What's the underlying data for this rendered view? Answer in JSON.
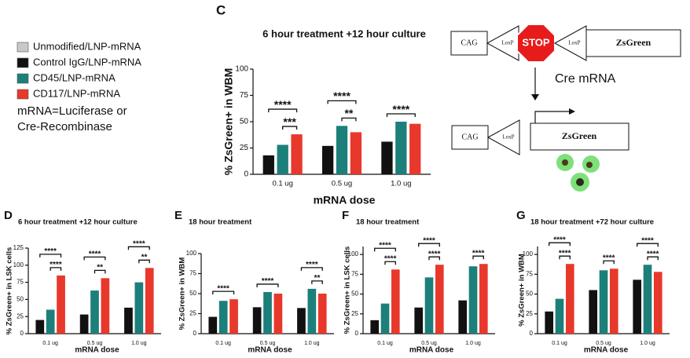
{
  "legend": [
    {
      "name": "Unmodified/LNP-mRNA",
      "color": "#c8c8c8"
    },
    {
      "name": "Control IgG/LNP-mRNA",
      "color": "#111111"
    },
    {
      "name": "CD45/LNP-mRNA",
      "color": "#1c7f7a"
    },
    {
      "name": "CD117/LNP-mRNA",
      "color": "#e8382c"
    }
  ],
  "note": [
    "mRNA=Luciferase or",
    "Cre-Recombinase"
  ],
  "diagram": {
    "top": [
      "CAG",
      "LoxP",
      "STOP",
      "LoxP",
      "ZsGreen"
    ],
    "arrow": "Cre mRNA",
    "bottom": [
      "CAG",
      "LoxP",
      "ZsGreen"
    ]
  },
  "chart_data": [
    {
      "type": "bar",
      "panel": "C",
      "title": "6 hour treatment +12 hour culture",
      "ylabel": "% ZsGreen+ in WBM",
      "xlabel": "mRNA dose",
      "categories": [
        "0.1 ug",
        "0.5 ug",
        "1.0 ug"
      ],
      "ylim": [
        0,
        100
      ],
      "yticks": [
        0,
        25,
        50,
        75,
        100
      ],
      "series": [
        {
          "color": "#111111",
          "values": [
            18,
            27,
            31
          ]
        },
        {
          "color": "#1c7f7a",
          "values": [
            28,
            46,
            50
          ]
        },
        {
          "color": "#e8382c",
          "values": [
            38,
            40,
            48
          ]
        }
      ],
      "annotations": [
        {
          "label": "****",
          "category": 0,
          "from": 0,
          "to": 2
        },
        {
          "label": "***",
          "category": 0,
          "from": 1,
          "to": 2
        },
        {
          "label": "****",
          "category": 1,
          "from": 0,
          "to": 2
        },
        {
          "label": "**",
          "category": 1,
          "from": 1,
          "to": 2
        },
        {
          "label": "****",
          "category": 2,
          "from": 0,
          "to": 2
        }
      ]
    },
    {
      "type": "bar",
      "panel": "D",
      "title": "6 hour treatment +12 hour culture",
      "ylabel": "% ZsGreen+ in LSK cells",
      "xlabel": "mRNA dose",
      "categories": [
        "0.1 ug",
        "0.5 ug",
        "1.0 ug"
      ],
      "ylim": [
        0,
        125
      ],
      "yticks": [
        0,
        25,
        50,
        75,
        100,
        125
      ],
      "series": [
        {
          "color": "#111111",
          "values": [
            20,
            28,
            38
          ]
        },
        {
          "color": "#1c7f7a",
          "values": [
            35,
            63,
            75
          ]
        },
        {
          "color": "#e8382c",
          "values": [
            85,
            81,
            96
          ]
        }
      ],
      "annotations": [
        {
          "label": "****",
          "category": 0,
          "from": 0,
          "to": 2
        },
        {
          "label": "****",
          "category": 0,
          "from": 1,
          "to": 2
        },
        {
          "label": "****",
          "category": 1,
          "from": 0,
          "to": 2
        },
        {
          "label": "**",
          "category": 1,
          "from": 1,
          "to": 2
        },
        {
          "label": "****",
          "category": 2,
          "from": 0,
          "to": 2
        },
        {
          "label": "**",
          "category": 2,
          "from": 1,
          "to": 2
        }
      ]
    },
    {
      "type": "bar",
      "panel": "E",
      "title": "18 hour treatment",
      "ylabel": "% ZsGreen+ in WBM",
      "xlabel": "mRNA dose",
      "categories": [
        "0.1 ug",
        "0.5 ug",
        "1.0 ug"
      ],
      "ylim": [
        0,
        100
      ],
      "yticks": [
        0,
        25,
        50,
        75,
        100
      ],
      "series": [
        {
          "color": "#111111",
          "values": [
            21,
            33,
            32
          ]
        },
        {
          "color": "#1c7f7a",
          "values": [
            41,
            52,
            56
          ]
        },
        {
          "color": "#e8382c",
          "values": [
            43,
            50,
            50
          ]
        }
      ],
      "annotations": [
        {
          "label": "****",
          "category": 0,
          "from": 0,
          "to": 2
        },
        {
          "label": "****",
          "category": 1,
          "from": 0,
          "to": 2
        },
        {
          "label": "****",
          "category": 2,
          "from": 0,
          "to": 2
        },
        {
          "label": "**",
          "category": 2,
          "from": 1,
          "to": 2
        }
      ]
    },
    {
      "type": "bar",
      "panel": "F",
      "title": "18 hour treatment",
      "ylabel": "% ZsGreen+ in LSK cells",
      "xlabel": "mRNA dose",
      "categories": [
        "0.1 ug",
        "0.5 ug",
        "1.0 ug"
      ],
      "ylim": [
        0,
        110
      ],
      "yticks": [
        0,
        25,
        50,
        75,
        100
      ],
      "series": [
        {
          "color": "#111111",
          "values": [
            17,
            33,
            42
          ]
        },
        {
          "color": "#1c7f7a",
          "values": [
            38,
            71,
            85
          ]
        },
        {
          "color": "#e8382c",
          "values": [
            81,
            87,
            88
          ]
        }
      ],
      "annotations": [
        {
          "label": "****",
          "category": 0,
          "from": 0,
          "to": 2
        },
        {
          "label": "****",
          "category": 0,
          "from": 1,
          "to": 2
        },
        {
          "label": "****",
          "category": 1,
          "from": 0,
          "to": 2
        },
        {
          "label": "****",
          "category": 1,
          "from": 1,
          "to": 2
        },
        {
          "label": "****",
          "category": 2,
          "from": 1,
          "to": 2
        }
      ]
    },
    {
      "type": "bar",
      "panel": "G",
      "title": "18 hour treatment +72 hour culture",
      "ylabel": "% ZsGreen+ in WBM",
      "xlabel": "mRNA dose",
      "categories": [
        "0.1 ug",
        "0.5 ug",
        "1.0 ug"
      ],
      "ylim": [
        0,
        110
      ],
      "yticks": [
        0,
        25,
        50,
        75,
        100
      ],
      "series": [
        {
          "color": "#111111",
          "values": [
            28,
            55,
            68
          ]
        },
        {
          "color": "#1c7f7a",
          "values": [
            44,
            80,
            87
          ]
        },
        {
          "color": "#e8382c",
          "values": [
            88,
            82,
            78
          ]
        }
      ],
      "annotations": [
        {
          "label": "****",
          "category": 0,
          "from": 0,
          "to": 2
        },
        {
          "label": "****",
          "category": 0,
          "from": 1,
          "to": 2
        },
        {
          "label": "****",
          "category": 1,
          "from": 1,
          "to": 2
        },
        {
          "label": "****",
          "category": 2,
          "from": 0,
          "to": 2
        },
        {
          "label": "****",
          "category": 2,
          "from": 1,
          "to": 2
        }
      ]
    }
  ]
}
